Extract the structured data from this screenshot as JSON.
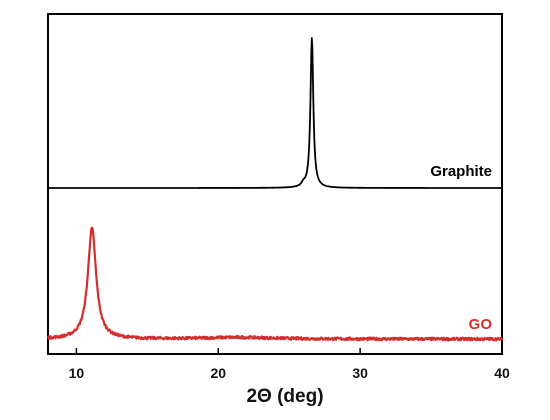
{
  "chart_data": {
    "type": "line",
    "xlabel": "2Θ (deg)",
    "ylabel": "",
    "xlim": [
      8,
      40
    ],
    "grid": false,
    "x_ticks": [
      10,
      20,
      30,
      40
    ],
    "x_tick_labels": [
      "10",
      "20",
      "30",
      "40"
    ],
    "series": [
      {
        "name": "Graphite",
        "color": "#000000",
        "peaks": [
          {
            "x": 26.6,
            "height": 1.0,
            "width": 0.12
          },
          {
            "x": 26.0,
            "height": 0.02,
            "width": 0.15
          }
        ],
        "baseline": 0,
        "noise": 0.0
      },
      {
        "name": "GO",
        "color": "#d32f2f",
        "peaks": [
          {
            "x": 11.1,
            "height": 0.66,
            "width": 0.35
          },
          {
            "x": 21.5,
            "height": 0.01,
            "width": 3.0
          }
        ],
        "baseline": 0.035,
        "noise": 0.008
      }
    ]
  }
}
